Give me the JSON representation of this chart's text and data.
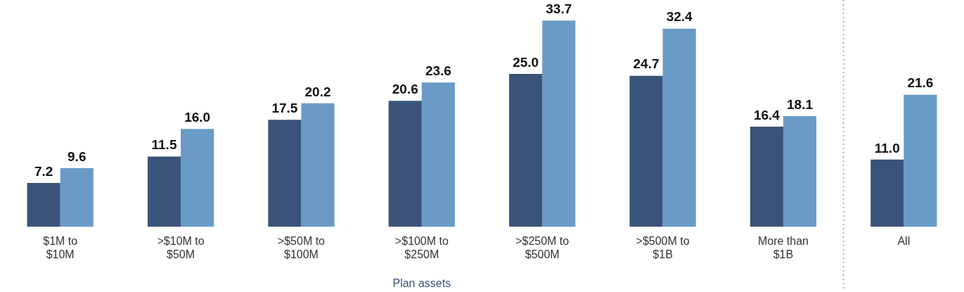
{
  "chart_data": {
    "type": "bar",
    "xlabel": "Plan assets",
    "categories": [
      "$1M to $10M",
      ">$10M to $50M",
      ">$50M to $100M",
      ">$100M to $250M",
      ">$250M to $500M",
      ">$500M to $1B",
      "More than $1B",
      "All"
    ],
    "series": [
      {
        "color": "#3a5479",
        "values": [
          7.2,
          11.5,
          17.5,
          20.6,
          25.0,
          24.7,
          16.4,
          11.0
        ],
        "value_labels": [
          "7.2",
          "11.5",
          "17.5",
          "20.6",
          "25.0",
          "24.7",
          "16.4",
          "11.0"
        ]
      },
      {
        "color": "#6a9bc7",
        "values": [
          9.6,
          16.0,
          20.2,
          23.6,
          33.7,
          32.4,
          18.1,
          21.6
        ],
        "value_labels": [
          "9.6",
          "16.0",
          "20.2",
          "23.6",
          "33.7",
          "32.4",
          "18.1",
          "21.6"
        ]
      }
    ]
  }
}
